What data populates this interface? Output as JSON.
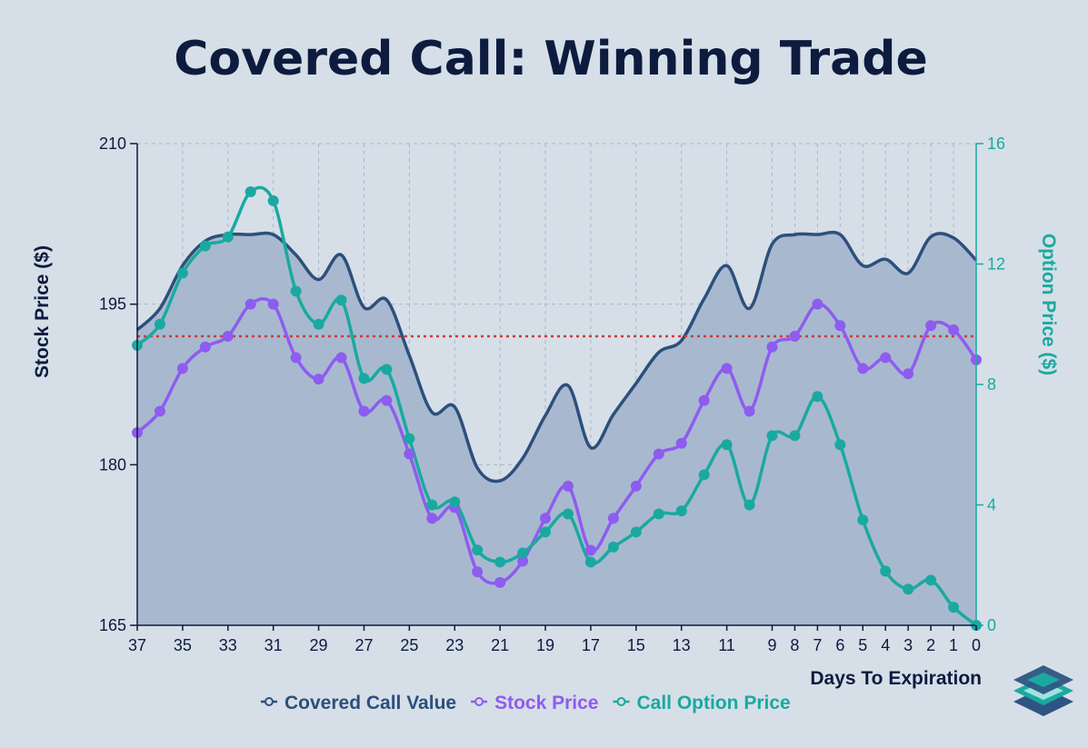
{
  "chart_data": {
    "type": "line",
    "title": "Covered Call: Winning Trade",
    "xlabel": "Days To Expiration",
    "ylabel": "Stock Price ($)",
    "y2label": "Option Price ($)",
    "x": [
      37,
      36,
      35,
      34,
      33,
      32,
      31,
      30,
      29,
      28,
      27,
      26,
      25,
      24,
      23,
      22,
      21,
      20,
      19,
      18,
      17,
      16,
      15,
      14,
      13,
      12,
      11,
      10,
      9,
      8,
      7,
      6,
      5,
      4,
      3,
      2,
      1,
      0
    ],
    "x_reversed": true,
    "x_ticks": [
      37,
      35,
      33,
      31,
      29,
      27,
      25,
      23,
      21,
      19,
      17,
      15,
      13,
      11,
      9,
      8,
      7,
      6,
      5,
      4,
      3,
      2,
      1,
      0
    ],
    "ylim": [
      165,
      210
    ],
    "y_ticks": [
      165,
      180,
      195,
      210
    ],
    "y2lim": [
      0,
      16
    ],
    "y2_ticks": [
      0,
      4,
      8,
      12,
      16
    ],
    "strike_line": 192,
    "grid": true,
    "legend_position": "bottom",
    "series": [
      {
        "name": "Covered Call Value",
        "axis": "left",
        "style": "area",
        "color": "#2d4f7c",
        "fill": "#a8b9cf",
        "values": [
          192.6,
          194.6,
          198.6,
          200.9,
          201.5,
          201.5,
          201.5,
          199.6,
          197.3,
          199.6,
          194.7,
          195.4,
          190.2,
          184.9,
          185.4,
          179.7,
          178.5,
          180.6,
          184.6,
          187.4,
          181.6,
          184.7,
          187.6,
          190.5,
          191.6,
          195.5,
          198.6,
          194.6,
          200.6,
          201.5,
          201.5,
          201.5,
          198.6,
          199.2,
          197.9,
          201.3,
          201.2,
          199.1
        ]
      },
      {
        "name": "Stock Price",
        "axis": "left",
        "style": "line",
        "color": "#8e5cf0",
        "values": [
          183,
          185,
          189,
          191,
          192,
          195,
          195,
          190,
          188,
          190,
          185,
          186,
          181,
          175,
          176,
          170,
          169,
          171,
          175,
          178,
          172,
          175,
          178,
          181,
          182,
          186,
          189,
          185,
          191,
          192,
          195,
          193,
          189,
          190,
          188.5,
          193,
          192.6,
          189.8
        ]
      },
      {
        "name": "Call Option Price",
        "axis": "right",
        "style": "line",
        "color": "#1aa9a0",
        "values": [
          9.3,
          10.0,
          11.7,
          12.6,
          12.9,
          14.4,
          14.1,
          11.1,
          10.0,
          10.8,
          8.2,
          8.5,
          6.2,
          4.0,
          4.1,
          2.5,
          2.1,
          2.4,
          3.1,
          3.7,
          2.1,
          2.6,
          3.1,
          3.7,
          3.8,
          5.0,
          6.0,
          4.0,
          6.3,
          6.3,
          7.6,
          6.0,
          3.5,
          1.8,
          1.2,
          1.5,
          0.6,
          0.0
        ]
      }
    ]
  },
  "ui": {
    "logo": "layers-logo-icon"
  }
}
